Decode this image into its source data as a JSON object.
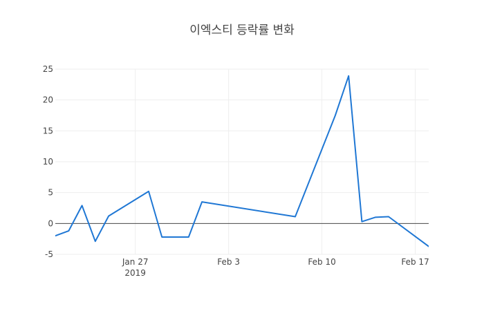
{
  "chart_data": {
    "type": "line",
    "title": "이엑스티 등락률 변화",
    "xlabel": "",
    "ylabel": "",
    "x_ticks": [
      {
        "date": "2019-01-27",
        "label": "Jan 27",
        "sublabel": "2019"
      },
      {
        "date": "2019-02-03",
        "label": "Feb 3",
        "sublabel": ""
      },
      {
        "date": "2019-02-10",
        "label": "Feb 10",
        "sublabel": ""
      },
      {
        "date": "2019-02-17",
        "label": "Feb 17",
        "sublabel": ""
      }
    ],
    "y_ticks": [
      -5,
      0,
      5,
      10,
      15,
      20,
      25
    ],
    "xlim": [
      "2019-01-21",
      "2019-02-17"
    ],
    "ylim": [
      -5,
      25
    ],
    "grid": true,
    "series": [
      {
        "name": "",
        "color": "#1f77d4",
        "points": [
          {
            "x": "2019-01-21",
            "y": -2.0
          },
          {
            "x": "2019-01-22",
            "y": -1.2
          },
          {
            "x": "2019-01-23",
            "y": 2.9
          },
          {
            "x": "2019-01-24",
            "y": -2.9
          },
          {
            "x": "2019-01-25",
            "y": 1.2
          },
          {
            "x": "2019-01-28",
            "y": 5.2
          },
          {
            "x": "2019-01-29",
            "y": -2.2
          },
          {
            "x": "2019-01-30",
            "y": -2.2
          },
          {
            "x": "2019-01-31",
            "y": -2.2
          },
          {
            "x": "2019-02-01",
            "y": 3.5
          },
          {
            "x": "2019-02-08",
            "y": 1.1
          },
          {
            "x": "2019-02-11",
            "y": 17.5
          },
          {
            "x": "2019-02-12",
            "y": 23.9
          },
          {
            "x": "2019-02-13",
            "y": 0.3
          },
          {
            "x": "2019-02-14",
            "y": 1.0
          },
          {
            "x": "2019-02-15",
            "y": 1.1
          },
          {
            "x": "2019-02-18",
            "y": -3.7
          }
        ]
      }
    ]
  }
}
